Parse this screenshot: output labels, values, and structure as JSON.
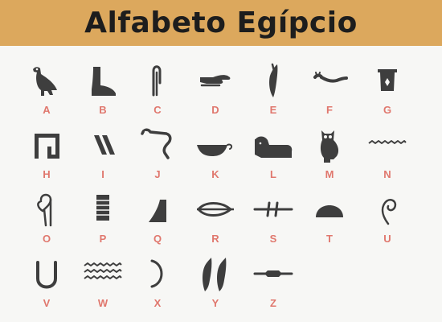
{
  "title": "Alfabeto Egípcio",
  "colors": {
    "banner": "#dca85d",
    "glyph": "#3e3e3e",
    "letter": "#e0776d",
    "background": "#f7f7f5"
  },
  "glyphs": [
    {
      "letter": "A",
      "icon": "vulture-icon"
    },
    {
      "letter": "B",
      "icon": "foot-icon"
    },
    {
      "letter": "C",
      "icon": "folded-cloth-icon"
    },
    {
      "letter": "D",
      "icon": "hand-icon"
    },
    {
      "letter": "E",
      "icon": "reed-leaf-icon"
    },
    {
      "letter": "F",
      "icon": "horned-viper-icon"
    },
    {
      "letter": "G",
      "icon": "jar-stand-icon"
    },
    {
      "letter": "H",
      "icon": "courtyard-icon"
    },
    {
      "letter": "I",
      "icon": "double-strokes-icon"
    },
    {
      "letter": "J",
      "icon": "cobra-icon"
    },
    {
      "letter": "K",
      "icon": "basket-icon"
    },
    {
      "letter": "L",
      "icon": "lion-icon"
    },
    {
      "letter": "M",
      "icon": "owl-icon"
    },
    {
      "letter": "N",
      "icon": "water-ripple-icon"
    },
    {
      "letter": "O",
      "icon": "lasso-icon"
    },
    {
      "letter": "P",
      "icon": "stool-icon"
    },
    {
      "letter": "Q",
      "icon": "hill-slope-icon"
    },
    {
      "letter": "R",
      "icon": "mouth-icon"
    },
    {
      "letter": "S",
      "icon": "door-bolt-icon"
    },
    {
      "letter": "T",
      "icon": "bread-loaf-icon"
    },
    {
      "letter": "U",
      "icon": "quail-chick-icon"
    },
    {
      "letter": "V",
      "icon": "horseshoe-icon"
    },
    {
      "letter": "W",
      "icon": "double-water-icon"
    },
    {
      "letter": "X",
      "icon": "semicircle-icon"
    },
    {
      "letter": "Y",
      "icon": "double-reed-icon"
    },
    {
      "letter": "Z",
      "icon": "bolt-icon"
    }
  ]
}
